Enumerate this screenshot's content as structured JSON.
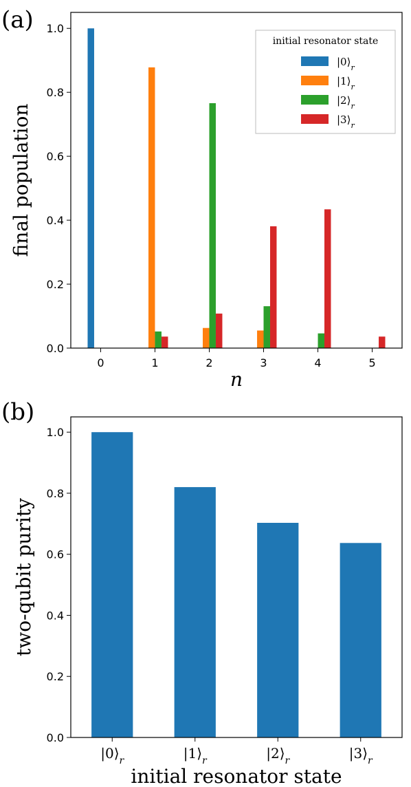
{
  "panels": {
    "a_label": "(a)",
    "b_label": "(b)"
  },
  "chart_data": [
    {
      "type": "bar",
      "xlabel": "n",
      "ylabel": "final population",
      "categories": [
        "0",
        "1",
        "2",
        "3",
        "4",
        "5"
      ],
      "x": [
        0,
        1,
        2,
        3,
        4,
        5
      ],
      "ylim": [
        0,
        1.05
      ],
      "yticks": [
        "0.0",
        "0.2",
        "0.4",
        "0.6",
        "0.8",
        "1.0"
      ],
      "legend": {
        "title": "initial resonator state",
        "placement": "top-right"
      },
      "series": [
        {
          "name": "|0⟩",
          "subscript": "r",
          "color": "#1f77b4",
          "values": [
            1.0,
            0.0,
            0.0,
            0.0,
            0.0,
            0.0
          ]
        },
        {
          "name": "|1⟩",
          "subscript": "r",
          "color": "#ff7f0e",
          "values": [
            0.0,
            0.878,
            0.063,
            0.055,
            0.0,
            0.0
          ]
        },
        {
          "name": "|2⟩",
          "subscript": "r",
          "color": "#2ca02c",
          "values": [
            0.0,
            0.052,
            0.766,
            0.131,
            0.046,
            0.0
          ]
        },
        {
          "name": "|3⟩",
          "subscript": "r",
          "color": "#d62728",
          "values": [
            0.0,
            0.036,
            0.108,
            0.381,
            0.434,
            0.036
          ]
        }
      ],
      "grid": false
    },
    {
      "type": "bar",
      "xlabel": "initial resonator state",
      "ylabel": "two-qubit purity",
      "categories": [
        {
          "ket": "|0⟩",
          "subscript": "r"
        },
        {
          "ket": "|1⟩",
          "subscript": "r"
        },
        {
          "ket": "|2⟩",
          "subscript": "r"
        },
        {
          "ket": "|3⟩",
          "subscript": "r"
        }
      ],
      "values": [
        1.0,
        0.82,
        0.703,
        0.637
      ],
      "color": "#1f77b4",
      "ylim": [
        0,
        1.05
      ],
      "yticks": [
        "0.0",
        "0.2",
        "0.4",
        "0.6",
        "0.8",
        "1.0"
      ],
      "grid": false
    }
  ]
}
